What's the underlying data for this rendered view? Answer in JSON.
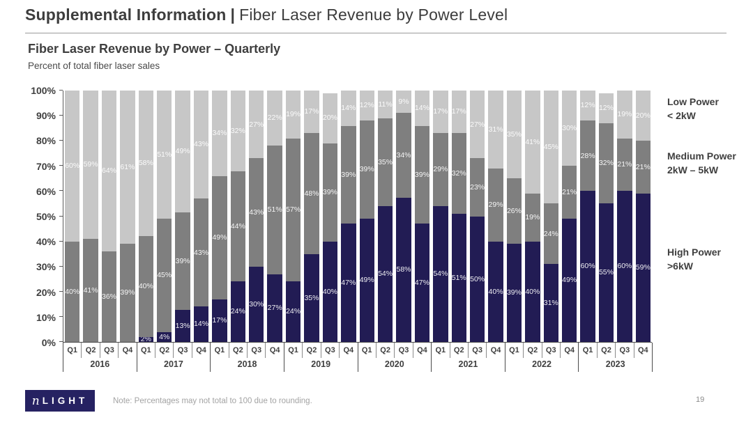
{
  "page": {
    "header": {
      "title_bold": "Supplemental Information",
      "title_sep": "|",
      "title_rest": "Fiber Laser Revenue by Power Level"
    },
    "footer": {
      "logo_n": "n",
      "logo_rest": "LIGHT",
      "logo_color": "#262262",
      "note": "Note:  Percentages may not total to 100 due to rounding.",
      "page_number": "19"
    }
  },
  "chart_data": {
    "type": "bar",
    "stacked": true,
    "title": "Fiber Laser Revenue by Power – Quarterly",
    "subtitle": "Percent of total fiber laser sales",
    "unit": "%",
    "ylim": [
      0,
      100
    ],
    "grid": false,
    "legend_position": "right",
    "yticks": [
      "0%",
      "10%",
      "20%",
      "30%",
      "40%",
      "50%",
      "60%",
      "70%",
      "80%",
      "90%",
      "100%"
    ],
    "years": [
      "2016",
      "2017",
      "2018",
      "2019",
      "2020",
      "2021",
      "2022",
      "2023"
    ],
    "quarters": [
      "Q1",
      "Q2",
      "Q3",
      "Q4"
    ],
    "series": [
      {
        "name": "High Power >6kW",
        "color": "#221c54",
        "values": [
          0,
          0,
          0,
          0,
          2,
          4,
          13,
          14,
          17,
          24,
          30,
          27,
          24,
          35,
          40,
          47,
          49,
          54,
          58,
          47,
          54,
          51,
          50,
          40,
          39,
          40,
          31,
          49,
          60,
          55,
          60,
          59
        ]
      },
      {
        "name": "Medium Power 2kW – 5kW",
        "color": "#7f7f7f",
        "values": [
          40,
          41,
          36,
          39,
          40,
          45,
          39,
          43,
          49,
          44,
          43,
          51,
          57,
          48,
          39,
          39,
          39,
          35,
          34,
          39,
          29,
          32,
          23,
          29,
          26,
          19,
          24,
          21,
          28,
          32,
          21,
          21
        ]
      },
      {
        "name": "Low Power < 2kW",
        "color": "#c7c7c7",
        "values": [
          60,
          59,
          64,
          61,
          58,
          51,
          49,
          43,
          34,
          32,
          27,
          22,
          19,
          17,
          20,
          14,
          12,
          11,
          9,
          14,
          17,
          17,
          27,
          31,
          35,
          41,
          45,
          30,
          12,
          12,
          19,
          20
        ]
      }
    ],
    "legend": [
      {
        "series": "Low Power < 2kW",
        "line1": "Low Power",
        "line2": "< 2kW"
      },
      {
        "series": "Medium Power 2kW – 5kW",
        "line1": "Medium Power",
        "line2": "2kW – 5kW"
      },
      {
        "series": "High Power >6kW",
        "line1": "High Power",
        "line2": ">6kW"
      }
    ]
  }
}
